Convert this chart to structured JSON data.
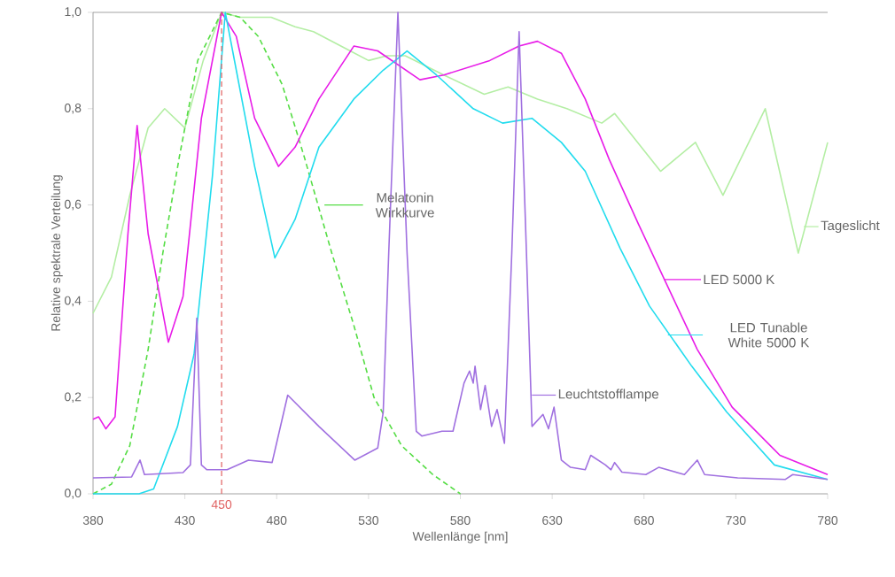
{
  "chart_data": {
    "type": "line",
    "xlabel": "Wellenlänge [nm]",
    "ylabel": "Relative spektrale Verteilung",
    "xlim": [
      380,
      780
    ],
    "ylim": [
      0,
      1.0
    ],
    "xticks": [
      380,
      430,
      480,
      530,
      580,
      630,
      680,
      730,
      780
    ],
    "yticks": [
      {
        "value": 0,
        "label": "0,0"
      },
      {
        "value": 0.2,
        "label": "0,2"
      },
      {
        "value": 0.4,
        "label": "0,4"
      },
      {
        "value": 0.6,
        "label": "0,6"
      },
      {
        "value": 0.8,
        "label": "0,8"
      },
      {
        "value": 1.0,
        "label": "1,0"
      }
    ],
    "legend": "right",
    "ref_lines": [
      {
        "axis": "x",
        "value": 450,
        "label": "450",
        "color": "#e06060",
        "line_style": "dashed"
      }
    ],
    "series": [
      {
        "name": "Tageslicht",
        "color": "#b4eea4",
        "x": [
          380,
          390,
          400,
          410,
          419,
          430,
          440,
          450,
          460,
          477,
          490,
          500,
          520,
          530,
          540,
          550,
          571,
          593,
          606,
          622,
          638,
          657,
          664,
          689,
          708,
          723,
          746,
          764,
          780
        ],
        "values": [
          0.375,
          0.45,
          0.62,
          0.76,
          0.8,
          0.76,
          0.9,
          1.0,
          0.99,
          0.99,
          0.97,
          0.96,
          0.92,
          0.9,
          0.91,
          0.91,
          0.87,
          0.83,
          0.845,
          0.82,
          0.8,
          0.77,
          0.79,
          0.67,
          0.73,
          0.62,
          0.8,
          0.5,
          0.73
        ]
      },
      {
        "name": "Melatonin Wirkkurve",
        "color": "#55dd44",
        "line_style": "dashed",
        "x": [
          380,
          390,
          400,
          410,
          418,
          427,
          437,
          450,
          460,
          470,
          483,
          495,
          510,
          522,
          533,
          548,
          565,
          580
        ],
        "values": [
          0.0,
          0.02,
          0.1,
          0.3,
          0.5,
          0.7,
          0.9,
          1.0,
          0.99,
          0.95,
          0.85,
          0.7,
          0.5,
          0.35,
          0.2,
          0.1,
          0.04,
          0.0
        ]
      },
      {
        "name": "LED 5000 K",
        "color": "#e81ce8",
        "x": [
          380,
          383,
          387,
          392,
          399,
          404,
          410,
          421,
          429,
          439,
          450,
          458,
          468,
          481,
          490,
          503,
          522,
          535,
          558,
          571,
          596,
          612,
          622,
          635,
          648,
          661,
          677,
          693,
          709,
          728,
          754,
          780
        ],
        "values": [
          0.155,
          0.16,
          0.135,
          0.16,
          0.54,
          0.765,
          0.54,
          0.315,
          0.41,
          0.78,
          1.0,
          0.95,
          0.78,
          0.68,
          0.72,
          0.82,
          0.93,
          0.92,
          0.86,
          0.87,
          0.9,
          0.93,
          0.94,
          0.915,
          0.82,
          0.695,
          0.56,
          0.43,
          0.3,
          0.18,
          0.08,
          0.04
        ]
      },
      {
        "name": "LED Tunable White 5000 K",
        "color": "#22dcee",
        "x": [
          380,
          405,
          413,
          426,
          435,
          445,
          452,
          458,
          468,
          479,
          490,
          503,
          522,
          538,
          551,
          567,
          587,
          603,
          619,
          635,
          648,
          667,
          683,
          706,
          725,
          751,
          780
        ],
        "values": [
          0.0,
          0.0,
          0.01,
          0.14,
          0.29,
          0.66,
          1.0,
          0.88,
          0.68,
          0.49,
          0.57,
          0.72,
          0.82,
          0.88,
          0.92,
          0.87,
          0.8,
          0.77,
          0.78,
          0.73,
          0.67,
          0.51,
          0.39,
          0.265,
          0.17,
          0.06,
          0.03
        ]
      },
      {
        "name": "Leuchtstofflampe",
        "color": "#a070e0",
        "x": [
          380,
          401,
          405.6,
          408,
          429,
          433,
          436.5,
          439,
          442,
          453,
          464.6,
          477.5,
          486,
          503,
          522.5,
          535,
          538,
          541,
          546,
          551,
          556,
          559,
          570,
          576,
          582,
          585,
          587,
          588,
          591,
          593.5,
          597,
          600,
          604,
          608,
          612,
          616,
          619,
          625,
          628,
          631,
          635,
          640,
          648,
          651,
          659,
          662,
          664,
          668,
          681,
          688,
          702,
          709,
          713,
          731,
          757,
          761,
          780
        ],
        "values": [
          0.033,
          0.035,
          0.07,
          0.04,
          0.044,
          0.06,
          0.365,
          0.06,
          0.05,
          0.05,
          0.07,
          0.065,
          0.205,
          0.14,
          0.07,
          0.095,
          0.17,
          0.5,
          1.0,
          0.5,
          0.13,
          0.12,
          0.13,
          0.13,
          0.23,
          0.255,
          0.23,
          0.265,
          0.175,
          0.225,
          0.14,
          0.175,
          0.105,
          0.5,
          0.96,
          0.5,
          0.14,
          0.165,
          0.135,
          0.18,
          0.07,
          0.055,
          0.05,
          0.08,
          0.06,
          0.05,
          0.065,
          0.045,
          0.04,
          0.055,
          0.04,
          0.07,
          0.04,
          0.033,
          0.03,
          0.04,
          0.03
        ]
      }
    ]
  }
}
